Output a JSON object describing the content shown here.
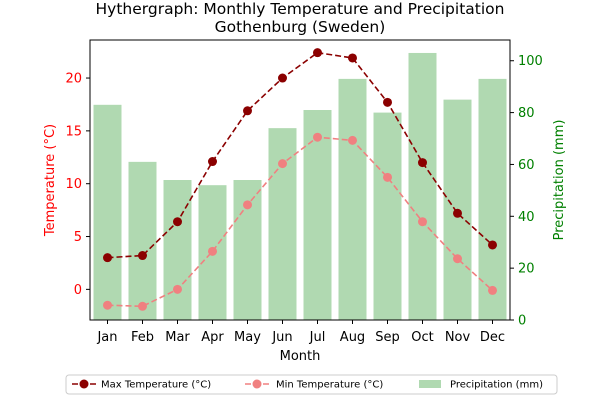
{
  "chart_data": {
    "type": "bar+line",
    "title": "Hythergraph: Monthly Temperature and Precipitation",
    "subtitle": "Gothenburg (Sweden)",
    "xlabel": "Month",
    "ylabel_left": "Temperature (°C)",
    "ylabel_right": "Precipitation (mm)",
    "categories": [
      "Jan",
      "Feb",
      "Mar",
      "Apr",
      "May",
      "Jun",
      "Jul",
      "Aug",
      "Sep",
      "Oct",
      "Nov",
      "Dec"
    ],
    "ylim_left": [
      -2.9,
      23.6
    ],
    "ylim_right": [
      0,
      108
    ],
    "yticks_left": [
      "0",
      "5",
      "10",
      "15",
      "20"
    ],
    "yticks_right": [
      "0",
      "20",
      "40",
      "60",
      "80",
      "100"
    ],
    "series": [
      {
        "name": "Max Temperature (°C)",
        "type": "line",
        "axis": "left",
        "color": "#8b0000",
        "linestyle": "dashed",
        "values": [
          3.0,
          3.2,
          6.4,
          12.1,
          16.9,
          20.0,
          22.4,
          21.9,
          17.7,
          12.0,
          7.2,
          4.2
        ]
      },
      {
        "name": "Min Temperature (°C)",
        "type": "line",
        "axis": "left",
        "color": "#f08080",
        "linestyle": "dashed",
        "values": [
          -1.5,
          -1.6,
          0.0,
          3.6,
          8.0,
          11.9,
          14.4,
          14.1,
          10.6,
          6.4,
          2.9,
          -0.1
        ]
      },
      {
        "name": "Precipitation (mm)",
        "type": "bar",
        "axis": "right",
        "color": "#b0d9b1",
        "values": [
          83,
          61,
          54,
          52,
          54,
          74,
          81,
          93,
          80,
          103,
          85,
          93
        ]
      }
    ],
    "legend_position": "bottom",
    "grid": false,
    "left_axis_color": "#ff0000",
    "right_axis_color": "#008000"
  }
}
